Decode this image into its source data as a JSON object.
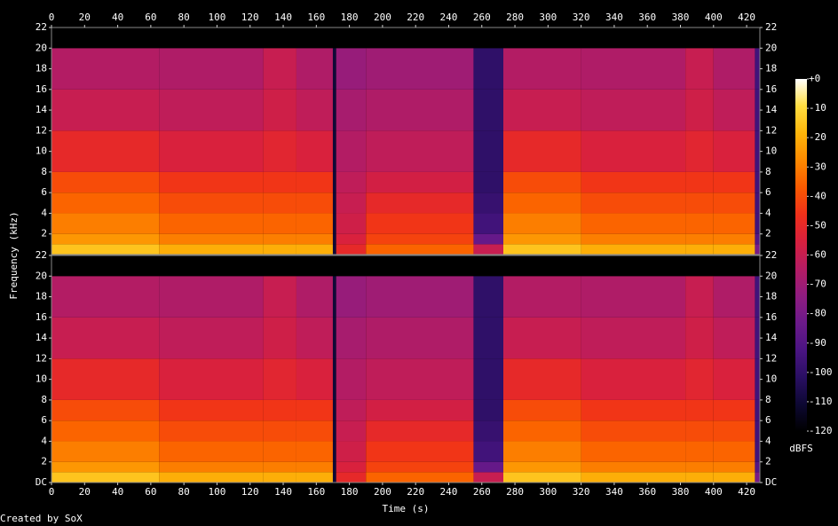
{
  "chart_data": [
    {
      "type": "heatmap",
      "xlim": [
        0,
        428
      ],
      "ylim": [
        0,
        22
      ],
      "xticks": [
        0,
        20,
        40,
        60,
        80,
        100,
        120,
        140,
        160,
        180,
        200,
        220,
        240,
        260,
        280,
        300,
        320,
        340,
        360,
        380,
        400,
        420
      ],
      "yticks": [
        2,
        4,
        6,
        8,
        10,
        12,
        14,
        16,
        18,
        20,
        22
      ],
      "x_edges": [
        0,
        65,
        128,
        148,
        170,
        172,
        190,
        255,
        273,
        320,
        383,
        400,
        425,
        428
      ],
      "y_edges": [
        0,
        1,
        2,
        4,
        6,
        8,
        12,
        16,
        20,
        22
      ],
      "z": [
        [
          -15,
          -25,
          -30,
          -35,
          -40,
          -50,
          -60,
          -65,
          -120
        ],
        [
          -20,
          -30,
          -35,
          -40,
          -45,
          -55,
          -62,
          -66,
          -120
        ],
        [
          -20,
          -30,
          -35,
          -40,
          -45,
          -52,
          -58,
          -60,
          -120
        ],
        [
          -20,
          -30,
          -35,
          -40,
          -45,
          -55,
          -62,
          -66,
          -120
        ],
        [
          -110,
          -110,
          -110,
          -110,
          -110,
          -110,
          -110,
          -110,
          -120
        ],
        [
          -50,
          -55,
          -58,
          -60,
          -62,
          -65,
          -68,
          -72,
          -120
        ],
        [
          -35,
          -42,
          -45,
          -50,
          -57,
          -62,
          -66,
          -70,
          -120
        ],
        [
          -60,
          -85,
          -95,
          -98,
          -100,
          -100,
          -100,
          -100,
          -120
        ],
        [
          -15,
          -25,
          -30,
          -35,
          -40,
          -50,
          -60,
          -65,
          -120
        ],
        [
          -20,
          -30,
          -35,
          -40,
          -45,
          -55,
          -62,
          -66,
          -120
        ],
        [
          -20,
          -30,
          -35,
          -40,
          -45,
          -52,
          -58,
          -60,
          -120
        ],
        [
          -20,
          -30,
          -35,
          -40,
          -45,
          -55,
          -62,
          -66,
          -120
        ],
        [
          -80,
          -90,
          -95,
          -95,
          -95,
          -95,
          -95,
          -95,
          -120
        ]
      ]
    },
    {
      "type": "heatmap",
      "xlabel": "Time (s)",
      "ylabel": "Frequency (kHz)",
      "xlim": [
        0,
        428
      ],
      "ylim": [
        0,
        22
      ],
      "xticks": [
        0,
        20,
        40,
        60,
        80,
        100,
        120,
        140,
        160,
        180,
        200,
        220,
        240,
        260,
        280,
        300,
        320,
        340,
        360,
        380,
        400,
        420
      ],
      "yticks": [
        {
          "value": 0,
          "label": "DC"
        },
        2,
        4,
        6,
        8,
        10,
        12,
        14,
        16,
        18,
        20,
        22
      ],
      "x_edges": [
        0,
        65,
        128,
        148,
        170,
        172,
        190,
        255,
        273,
        320,
        383,
        400,
        425,
        428
      ],
      "y_edges": [
        0,
        1,
        2,
        4,
        6,
        8,
        12,
        16,
        20,
        22
      ],
      "z": [
        [
          -15,
          -25,
          -30,
          -35,
          -40,
          -50,
          -60,
          -65,
          -120
        ],
        [
          -20,
          -30,
          -35,
          -40,
          -45,
          -55,
          -62,
          -66,
          -120
        ],
        [
          -20,
          -30,
          -35,
          -40,
          -45,
          -52,
          -58,
          -60,
          -120
        ],
        [
          -20,
          -30,
          -35,
          -40,
          -45,
          -55,
          -62,
          -66,
          -120
        ],
        [
          -110,
          -110,
          -110,
          -110,
          -110,
          -110,
          -110,
          -110,
          -120
        ],
        [
          -50,
          -55,
          -58,
          -60,
          -62,
          -65,
          -68,
          -72,
          -120
        ],
        [
          -35,
          -42,
          -45,
          -50,
          -57,
          -62,
          -66,
          -70,
          -120
        ],
        [
          -60,
          -85,
          -95,
          -98,
          -100,
          -100,
          -100,
          -100,
          -120
        ],
        [
          -15,
          -25,
          -30,
          -35,
          -40,
          -50,
          -60,
          -65,
          -120
        ],
        [
          -20,
          -30,
          -35,
          -40,
          -45,
          -55,
          -62,
          -66,
          -120
        ],
        [
          -20,
          -30,
          -35,
          -40,
          -45,
          -52,
          -58,
          -60,
          -120
        ],
        [
          -20,
          -30,
          -35,
          -40,
          -45,
          -55,
          -62,
          -66,
          -120
        ],
        [
          -80,
          -90,
          -95,
          -95,
          -95,
          -95,
          -95,
          -95,
          -120
        ]
      ]
    }
  ],
  "colorbar": {
    "label": "dBFS",
    "lim": [
      -120,
      0
    ],
    "ticks": [
      {
        "value": 0,
        "label": "+0"
      },
      -10,
      -20,
      -30,
      -40,
      -50,
      -60,
      -70,
      -80,
      -90,
      -100,
      -110,
      -120
    ],
    "colors": [
      "#000000",
      "#0d0833",
      "#2a0f63",
      "#4b1483",
      "#6c1a8a",
      "#901c80",
      "#b51c63",
      "#d8203e",
      "#f0301a",
      "#fa5a00",
      "#fd8a00",
      "#fdb50a",
      "#ffdd40",
      "#ffffff"
    ]
  },
  "footer": "Created by SoX"
}
